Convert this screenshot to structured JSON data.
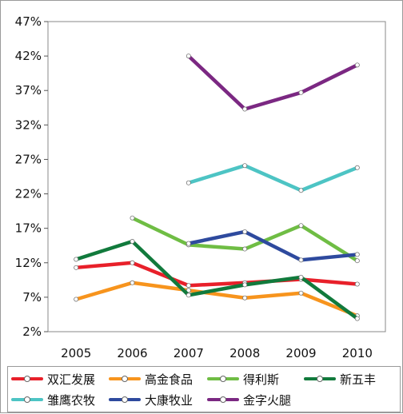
{
  "chart_data": {
    "type": "line",
    "title": "",
    "xlabel": "",
    "ylabel": "",
    "categories": [
      "2005",
      "2006",
      "2007",
      "2008",
      "2009",
      "2010"
    ],
    "y_ticks": [
      "2%",
      "7%",
      "12%",
      "17%",
      "22%",
      "27%",
      "32%",
      "37%",
      "42%",
      "47%"
    ],
    "ylim": [
      2,
      47
    ],
    "grid": false,
    "legend_position": "bottom",
    "series": [
      {
        "name": "双汇发展",
        "color": "#e8202a",
        "values": [
          11.3,
          12.0,
          8.7,
          9.1,
          9.6,
          8.9
        ]
      },
      {
        "name": "高金食品",
        "color": "#f7941d",
        "values": [
          6.7,
          9.1,
          8.0,
          6.9,
          7.6,
          4.3
        ]
      },
      {
        "name": "得利斯",
        "color": "#6fbd44",
        "values": [
          null,
          18.5,
          14.6,
          14.0,
          17.4,
          12.3
        ]
      },
      {
        "name": "新五丰",
        "color": "#117a3c",
        "values": [
          12.5,
          15.1,
          7.3,
          8.8,
          9.9,
          3.9
        ]
      },
      {
        "name": "雏鹰农牧",
        "color": "#4dc4c4",
        "values": [
          null,
          null,
          23.6,
          26.1,
          22.5,
          25.8
        ]
      },
      {
        "name": "大康牧业",
        "color": "#2e4a9e",
        "values": [
          null,
          null,
          14.8,
          16.5,
          12.4,
          13.2
        ]
      },
      {
        "name": "金字火腿",
        "color": "#7b2882",
        "values": [
          null,
          null,
          42.0,
          34.3,
          36.7,
          40.7
        ]
      }
    ]
  }
}
